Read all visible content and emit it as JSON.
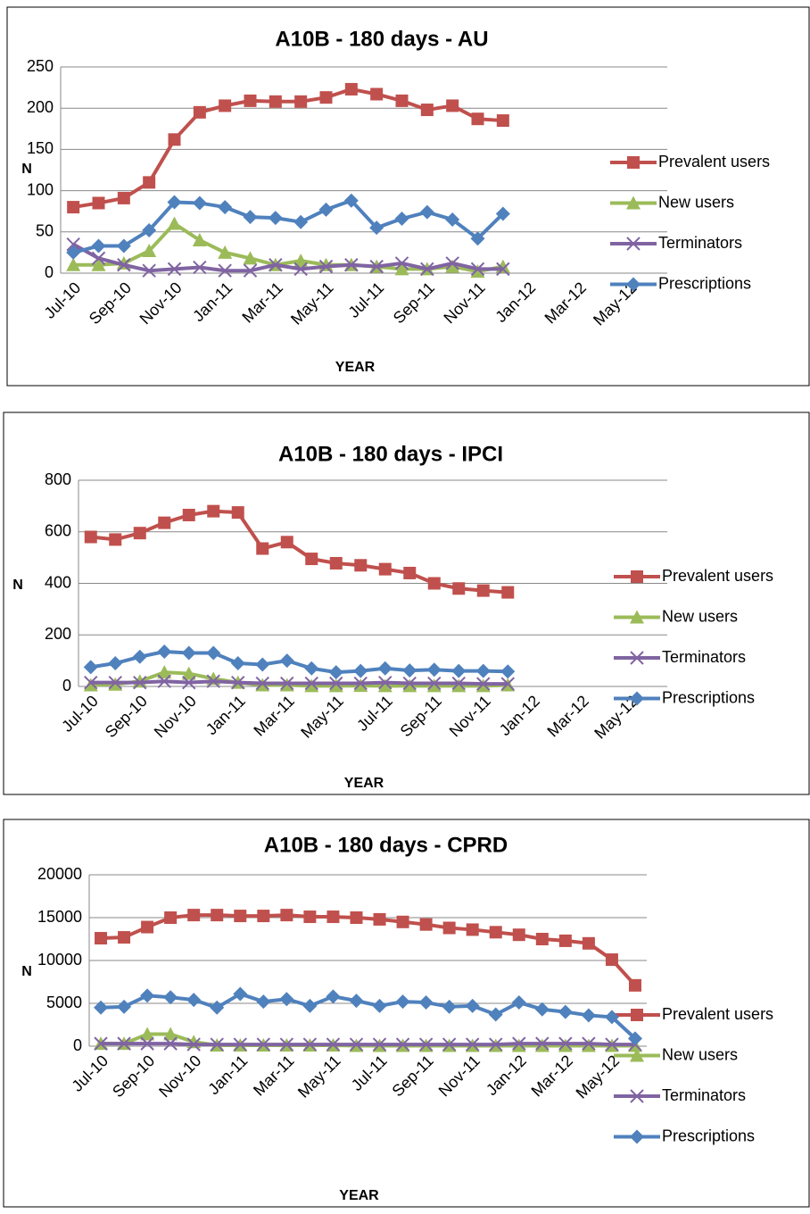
{
  "chart_data": [
    {
      "type": "line",
      "title": "A10B - 180 days - AU",
      "x_label": "YEAR",
      "y_label": "N",
      "categories": [
        "Jul-10",
        null,
        "Sep-10",
        null,
        "Nov-10",
        null,
        "Jan-11",
        null,
        "Mar-11",
        null,
        "May-11",
        null,
        "Jul-11",
        null,
        "Sep-11",
        null,
        "Nov-11",
        null,
        "Jan-12",
        null,
        "Mar-12",
        null,
        "May-12",
        null
      ],
      "series": [
        {
          "name": "Prevalent users",
          "color": "#c0504d",
          "marker": "square",
          "values": [
            80,
            85,
            91,
            110,
            162,
            195,
            203,
            209,
            208,
            208,
            213,
            223,
            217,
            209,
            198,
            203,
            187,
            185,
            null,
            null,
            null,
            null,
            null,
            null
          ]
        },
        {
          "name": "New users",
          "color": "#9bbb59",
          "marker": "triangle",
          "values": [
            10,
            10,
            12,
            27,
            60,
            40,
            25,
            18,
            10,
            15,
            10,
            10,
            8,
            5,
            5,
            8,
            2,
            8,
            null,
            null,
            null,
            null,
            null,
            null
          ]
        },
        {
          "name": "Terminators",
          "color": "#8064a2",
          "marker": "x",
          "values": [
            35,
            18,
            10,
            3,
            5,
            7,
            3,
            3,
            10,
            5,
            8,
            10,
            8,
            12,
            5,
            12,
            5,
            5,
            null,
            null,
            null,
            null,
            null,
            null
          ]
        },
        {
          "name": "Prescriptions",
          "color": "#4f81bd",
          "marker": "diamond",
          "values": [
            25,
            33,
            33,
            52,
            86,
            85,
            80,
            68,
            67,
            62,
            77,
            88,
            55,
            66,
            74,
            65,
            42,
            72,
            null,
            null,
            null,
            null,
            null,
            null
          ]
        }
      ],
      "ylim": [
        0,
        250
      ],
      "yticks": [
        0,
        50,
        100,
        150,
        200,
        250
      ],
      "grid": true,
      "legend": "right"
    },
    {
      "type": "line",
      "title": "A10B - 180 days - IPCI",
      "x_label": "YEAR",
      "y_label": "N",
      "categories": [
        "Jul-10",
        null,
        "Sep-10",
        null,
        "Nov-10",
        null,
        "Jan-11",
        null,
        "Mar-11",
        null,
        "May-11",
        null,
        "Jul-11",
        null,
        "Sep-11",
        null,
        "Nov-11",
        null,
        "Jan-12",
        null,
        "Mar-12",
        null,
        "May-12",
        null
      ],
      "series": [
        {
          "name": "Prevalent users",
          "color": "#c0504d",
          "marker": "square",
          "values": [
            580,
            570,
            595,
            635,
            665,
            680,
            675,
            535,
            560,
            495,
            478,
            470,
            455,
            440,
            400,
            380,
            372,
            365,
            null,
            null,
            null,
            null,
            null,
            null
          ]
        },
        {
          "name": "New users",
          "color": "#9bbb59",
          "marker": "triangle",
          "values": [
            5,
            8,
            20,
            55,
            50,
            30,
            15,
            5,
            5,
            2,
            2,
            3,
            2,
            2,
            2,
            2,
            2,
            5,
            null,
            null,
            null,
            null,
            null,
            null
          ]
        },
        {
          "name": "Terminators",
          "color": "#8064a2",
          "marker": "x",
          "values": [
            15,
            15,
            15,
            20,
            15,
            20,
            15,
            12,
            12,
            12,
            12,
            12,
            15,
            12,
            12,
            12,
            10,
            10,
            null,
            null,
            null,
            null,
            null,
            null
          ]
        },
        {
          "name": "Prescriptions",
          "color": "#4f81bd",
          "marker": "diamond",
          "values": [
            75,
            90,
            115,
            135,
            130,
            130,
            90,
            85,
            100,
            70,
            55,
            60,
            70,
            62,
            65,
            60,
            60,
            58,
            null,
            null,
            null,
            null,
            null,
            null
          ]
        }
      ],
      "ylim": [
        0,
        800
      ],
      "yticks": [
        0,
        200,
        400,
        600,
        800
      ],
      "grid": true,
      "legend": "right"
    },
    {
      "type": "line",
      "title": "A10B - 180 days - CPRD",
      "x_label": "YEAR",
      "y_label": "N",
      "categories": [
        "Jul-10",
        null,
        "Sep-10",
        null,
        "Nov-10",
        null,
        "Jan-11",
        null,
        "Mar-11",
        null,
        "May-11",
        null,
        "Jul-11",
        null,
        "Sep-11",
        null,
        "Nov-11",
        null,
        "Jan-12",
        null,
        "Mar-12",
        null,
        "May-12",
        null
      ],
      "series": [
        {
          "name": "Prevalent users",
          "color": "#c0504d",
          "marker": "square",
          "values": [
            12600,
            12700,
            13900,
            15000,
            15300,
            15300,
            15200,
            15200,
            15300,
            15100,
            15100,
            15000,
            14800,
            14500,
            14200,
            13800,
            13600,
            13300,
            13000,
            12500,
            12300,
            12000,
            10100,
            7100
          ]
        },
        {
          "name": "New users",
          "color": "#9bbb59",
          "marker": "triangle",
          "values": [
            300,
            300,
            1400,
            1400,
            500,
            100,
            100,
            100,
            100,
            100,
            100,
            50,
            50,
            50,
            50,
            50,
            50,
            50,
            50,
            50,
            50,
            50,
            50,
            50
          ]
        },
        {
          "name": "Terminators",
          "color": "#8064a2",
          "marker": "x",
          "values": [
            300,
            300,
            300,
            300,
            200,
            200,
            200,
            200,
            200,
            200,
            200,
            200,
            200,
            200,
            200,
            200,
            200,
            200,
            300,
            300,
            300,
            300,
            200,
            200
          ]
        },
        {
          "name": "Prescriptions",
          "color": "#4f81bd",
          "marker": "diamond",
          "values": [
            4500,
            4600,
            5900,
            5700,
            5400,
            4500,
            6100,
            5200,
            5500,
            4700,
            5800,
            5300,
            4700,
            5200,
            5100,
            4600,
            4700,
            3700,
            5100,
            4300,
            4000,
            3600,
            3400,
            900
          ]
        }
      ],
      "ylim": [
        0,
        20000
      ],
      "yticks": [
        0,
        5000,
        10000,
        15000,
        20000
      ],
      "grid": true,
      "legend": "right"
    }
  ]
}
